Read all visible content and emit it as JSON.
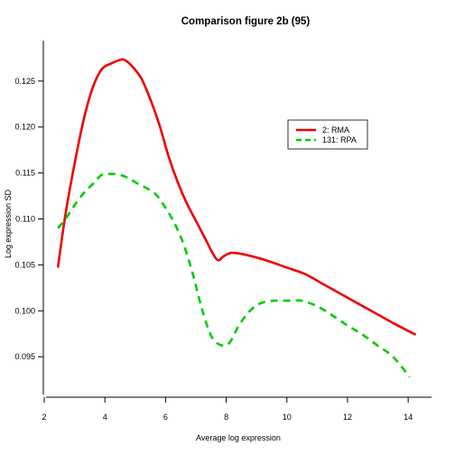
{
  "chart_data": {
    "type": "line",
    "title": "Comparison figure 2b (95)",
    "xlabel": "Average log expression",
    "ylabel": "Log expression SD",
    "xlim": [
      1.97,
      14.77
    ],
    "ylim": [
      0.0906,
      0.1294
    ],
    "xticks": [
      2,
      4,
      6,
      8,
      10,
      12,
      14
    ],
    "yticks": [
      0.095,
      0.1,
      0.105,
      0.11,
      0.115,
      0.12,
      0.125
    ],
    "grid": false,
    "legend_position": "top-right",
    "series": [
      {
        "name": "2: RMA",
        "color": "#ee0000",
        "dash": "solid",
        "x": [
          2.45,
          2.7,
          3.0,
          3.3,
          3.6,
          3.9,
          4.2,
          4.5,
          4.65,
          4.9,
          5.2,
          5.5,
          5.8,
          6.1,
          6.4,
          6.7,
          7.0,
          7.3,
          7.6,
          7.75,
          7.9,
          8.15,
          8.5,
          9.0,
          9.5,
          10.0,
          10.6,
          11.2,
          11.8,
          12.4,
          13.0,
          13.6,
          14.25
        ],
        "y": [
          0.1047,
          0.1105,
          0.116,
          0.1208,
          0.1243,
          0.1263,
          0.1269,
          0.1273,
          0.1273,
          0.1266,
          0.1253,
          0.123,
          0.1202,
          0.1168,
          0.114,
          0.1117,
          0.1098,
          0.1079,
          0.106,
          0.1055,
          0.1059,
          0.1063,
          0.1062,
          0.1058,
          0.1053,
          0.1047,
          0.104,
          0.1029,
          0.1018,
          0.1007,
          0.0996,
          0.0985,
          0.0974
        ]
      },
      {
        "name": "131: RPA",
        "color": "#00cc00",
        "dash": "dashed",
        "x": [
          2.45,
          2.7,
          3.0,
          3.3,
          3.6,
          3.9,
          4.2,
          4.5,
          4.8,
          5.1,
          5.4,
          5.7,
          6.0,
          6.3,
          6.6,
          6.9,
          7.2,
          7.5,
          7.8,
          8.1,
          8.4,
          8.7,
          9.0,
          9.3,
          9.6,
          9.9,
          10.2,
          10.5,
          11.0,
          11.5,
          12.0,
          12.5,
          13.0,
          13.5,
          14.05
        ],
        "y": [
          0.109,
          0.11,
          0.1115,
          0.1128,
          0.1138,
          0.1148,
          0.1149,
          0.1148,
          0.1144,
          0.1138,
          0.1133,
          0.1126,
          0.1112,
          0.1095,
          0.1072,
          0.104,
          0.1002,
          0.0973,
          0.0963,
          0.0965,
          0.0983,
          0.0997,
          0.1006,
          0.101,
          0.1011,
          0.1011,
          0.1011,
          0.1011,
          0.1005,
          0.0995,
          0.0984,
          0.0974,
          0.0962,
          0.095,
          0.0928
        ]
      }
    ]
  }
}
